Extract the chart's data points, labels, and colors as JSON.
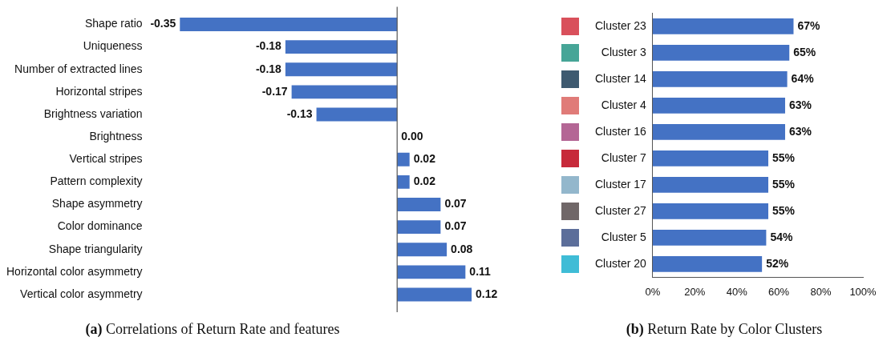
{
  "chart_data": [
    {
      "type": "bar",
      "orientation": "horizontal",
      "title": "(a) Correlations of Return Rate and features",
      "categories": [
        "Shape ratio",
        "Uniqueness",
        "Number of extracted lines",
        "Horizontal stripes",
        "Brightness variation",
        "Brightness",
        "Vertical stripes",
        "Pattern complexity",
        "Shape asymmetry",
        "Color dominance",
        "Shape triangularity",
        "Horizontal color asymmetry",
        "Vertical color asymmetry"
      ],
      "values": [
        -0.35,
        -0.18,
        -0.18,
        -0.17,
        -0.13,
        0.0,
        0.02,
        0.02,
        0.07,
        0.07,
        0.08,
        0.11,
        0.12
      ],
      "value_labels": [
        "-0.35",
        "-0.18",
        "-0.18",
        "-0.17",
        "-0.13",
        "0.00",
        "0.02",
        "0.02",
        "0.07",
        "0.07",
        "0.08",
        "0.11",
        "0.12"
      ],
      "color": "#4472c4",
      "tick_labels": "y",
      "ref_lines": [
        {
          "axis": "x",
          "value": 0,
          "color": "#555555"
        }
      ]
    },
    {
      "type": "bar",
      "orientation": "horizontal",
      "title": "(b) Return Rate by Color Clusters",
      "categories": [
        "Cluster 23",
        "Cluster 3",
        "Cluster 14",
        "Cluster 4",
        "Cluster 16",
        "Cluster 7",
        "Cluster 17",
        "Cluster 27",
        "Cluster 5",
        "Cluster 20"
      ],
      "values": [
        67,
        65,
        64,
        63,
        63,
        55,
        55,
        55,
        54,
        52
      ],
      "value_labels": [
        "67%",
        "65%",
        "64%",
        "63%",
        "63%",
        "55%",
        "55%",
        "55%",
        "54%",
        "52%"
      ],
      "color": "#4472c4",
      "xlim": [
        0,
        100
      ],
      "xticks": [
        {
          "value": 0,
          "label": "0%"
        },
        {
          "value": 20,
          "label": "20%"
        },
        {
          "value": 40,
          "label": "40%"
        },
        {
          "value": 60,
          "label": "60%"
        },
        {
          "value": 80,
          "label": "80%"
        },
        {
          "value": 100,
          "label": "100%"
        }
      ]
    }
  ]
}
